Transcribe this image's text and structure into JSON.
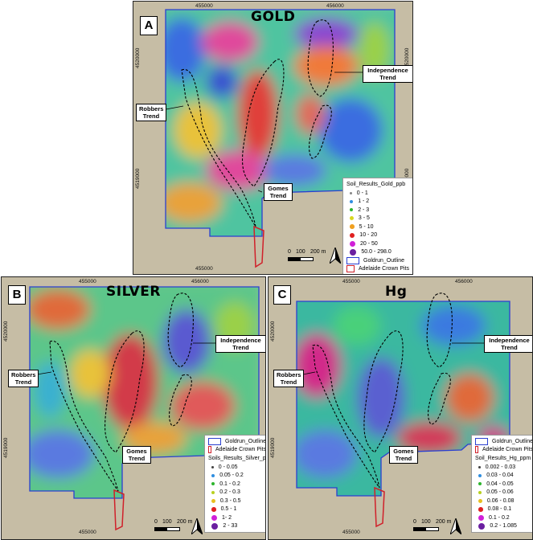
{
  "panels": [
    {
      "id": "A",
      "title": "GOLD",
      "easting_ticks": [
        "455000",
        "456000"
      ],
      "northing_ticks": [
        "4520000",
        "4519000"
      ],
      "legend_title": "Soil_Results_Gold_ppb",
      "classes": [
        {
          "label": "0 - 1",
          "color": "#888888",
          "size": 2
        },
        {
          "label": "1 - 2",
          "color": "#2f8ee0",
          "size": 3
        },
        {
          "label": "2 - 3",
          "color": "#2db52d",
          "size": 3
        },
        {
          "label": "3 - 5",
          "color": "#d8d820",
          "size": 3.5
        },
        {
          "label": "5 - 10",
          "color": "#f0a020",
          "size": 4
        },
        {
          "label": "10 - 20",
          "color": "#e02020",
          "size": 4.5
        },
        {
          "label": "20 - 50",
          "color": "#d020d8",
          "size": 5
        },
        {
          "label": "50.0 - 298.0",
          "color": "#6a1fa0",
          "size": 6
        }
      ]
    },
    {
      "id": "B",
      "title": "SILVER",
      "easting_ticks": [
        "455000",
        "456000"
      ],
      "northing_ticks": [
        "4520000",
        "4519000"
      ],
      "legend_title": "Soils_Results_Silver_ppm",
      "classes": [
        {
          "label": "0 - 0.05",
          "color": "#444444",
          "size": 2
        },
        {
          "label": "0.05 - 0.2",
          "color": "#2f8ee0",
          "size": 3
        },
        {
          "label": "0.1 - 0.2",
          "color": "#2db52d",
          "size": 3
        },
        {
          "label": "0.2 - 0.3",
          "color": "#b8d020",
          "size": 3
        },
        {
          "label": "0.3 - 0.5",
          "color": "#e8c020",
          "size": 3.5
        },
        {
          "label": "0.5 - 1",
          "color": "#e02020",
          "size": 4
        },
        {
          "label": "1- 2",
          "color": "#d020d8",
          "size": 5
        },
        {
          "label": "2 - 33",
          "color": "#6a1fa0",
          "size": 6
        }
      ]
    },
    {
      "id": "C",
      "title": "Hg",
      "easting_ticks": [
        "455000",
        "456000"
      ],
      "northing_ticks": [
        "4520000",
        "4519000"
      ],
      "legend_title": "Soil_Results_Hg_ppm",
      "classes": [
        {
          "label": "0.002 - 0.03",
          "color": "#444444",
          "size": 2
        },
        {
          "label": "0.03 - 0.04",
          "color": "#2f8ee0",
          "size": 3
        },
        {
          "label": "0.04 - 0.05",
          "color": "#2db52d",
          "size": 3
        },
        {
          "label": "0.05 - 0.06",
          "color": "#b8d020",
          "size": 3
        },
        {
          "label": "0.06 - 0.08",
          "color": "#e8c020",
          "size": 3.5
        },
        {
          "label": "0.08 - 0.1",
          "color": "#e02020",
          "size": 4
        },
        {
          "label": "0.1 - 0.2",
          "color": "#d020d8",
          "size": 5
        },
        {
          "label": "0.2 - 1.085",
          "color": "#6a1fa0",
          "size": 6
        }
      ]
    }
  ],
  "outline_legend": [
    {
      "label": "Goldrun_Outline",
      "color": "#2a3fd0"
    },
    {
      "label": "Adelaide Crown Pits",
      "color": "#d0202a"
    }
  ],
  "trends": {
    "robbers": "Robbers Trend",
    "gomes": "Gomes Trend",
    "independence": "Independence Trend"
  },
  "scale": {
    "zero": "0",
    "mid": "100",
    "end": "200 m"
  }
}
